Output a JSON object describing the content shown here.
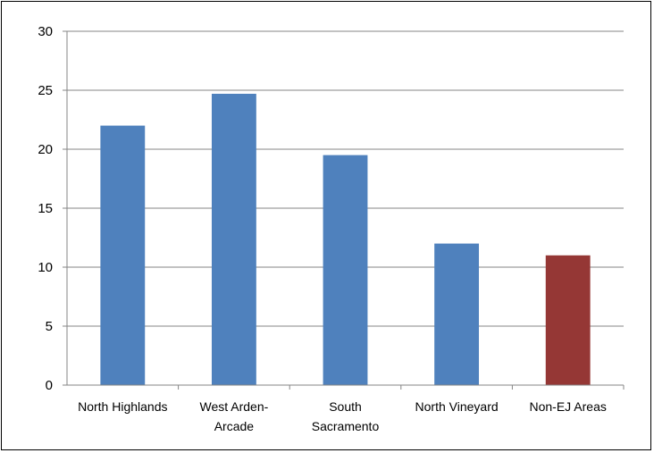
{
  "chart_data": {
    "type": "bar",
    "title": "",
    "xlabel": "",
    "ylabel": "",
    "categories": [
      [
        "North Highlands"
      ],
      [
        "West Arden-",
        "Arcade"
      ],
      [
        "South",
        "Sacramento"
      ],
      [
        "North Vineyard"
      ],
      [
        "Non-EJ Areas"
      ]
    ],
    "values": [
      22,
      24.7,
      19.5,
      12,
      11
    ],
    "bar_colors": [
      "#4f81bd",
      "#4f81bd",
      "#4f81bd",
      "#4f81bd",
      "#953735"
    ],
    "ylim": [
      0,
      30
    ],
    "yticks": [
      0,
      5,
      10,
      15,
      20,
      25,
      30
    ],
    "grid": true,
    "legend": "none"
  }
}
